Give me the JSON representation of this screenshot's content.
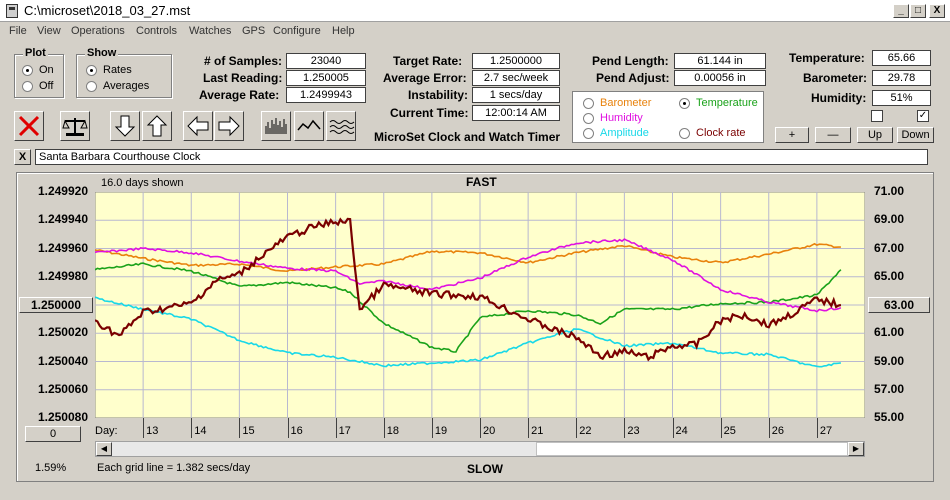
{
  "window": {
    "title": "C:\\microset\\2018_03_27.mst",
    "min": "_",
    "max": "□",
    "close": "X"
  },
  "menu": [
    "File",
    "View",
    "Operations",
    "Controls",
    "Watches",
    "GPS",
    "Configure",
    "Help"
  ],
  "plot_group": {
    "title": "Plot",
    "options": [
      "On",
      "Off"
    ],
    "selected": "On"
  },
  "show_group": {
    "title": "Show",
    "options": [
      "Rates",
      "Averages"
    ],
    "selected": "Rates"
  },
  "readings": {
    "samples_label": "# of Samples:",
    "samples": "23040",
    "last_label": "Last Reading:",
    "last": "1.250005",
    "avg_label": "Average Rate:",
    "avg": "1.2499943",
    "target_label": "Target Rate:",
    "target": "1.2500000",
    "avgerr_label": "Average Error:",
    "avgerr": "2.7 sec/week",
    "instab_label": "Instability:",
    "instab": "1 secs/day",
    "time_label": "Current Time:",
    "time": "12:00:14 AM",
    "pendlen_label": "Pend Length:",
    "pendlen": "61.144 in",
    "pendadj_label": "Pend Adjust:",
    "pendadj": "0.00056 in",
    "temp_label": "Temperature:",
    "temp": "65.66",
    "baro_label": "Barometer:",
    "baro": "29.78",
    "hum_label": "Humidity:",
    "hum": "51%"
  },
  "app_caption": "MicroSet Clock and Watch Timer",
  "series_select": {
    "options": [
      {
        "label": "Barometer",
        "color": "#e8820c"
      },
      {
        "label": "Temperature",
        "color": "#1aa21a"
      },
      {
        "label": "Humidity",
        "color": "#e010e0"
      },
      {
        "label": "Amplitude",
        "color": "#18d8e8"
      },
      {
        "label": "Clock rate",
        "color": "#7a0000"
      }
    ],
    "selected": "Temperature"
  },
  "aux_buttons": {
    "plus": "+",
    "minus": "—",
    "up": "Up",
    "down": "Down"
  },
  "checkboxes": [
    false,
    true
  ],
  "clock_name": "Santa Barbara Courthouse Clock",
  "clock_close": "X",
  "chart": {
    "top_label": "FAST",
    "bottom_label": "SLOW",
    "days_shown": "16.0 days shown",
    "grid_note": "Each grid line = 1.382 secs/day",
    "left_percent": "1.59%",
    "left_button": "1.250000",
    "right_button": "63.00",
    "zero_button": "0",
    "day_label": "Day:"
  },
  "chart_data": {
    "type": "line",
    "x_label": "Day:",
    "x_ticks": [
      13,
      14,
      15,
      16,
      17,
      18,
      19,
      20,
      21,
      22,
      23,
      24,
      25,
      26,
      27
    ],
    "y_left_ticks": [
      "1.249920",
      "1.249940",
      "1.249960",
      "1.249980",
      "1.250000",
      "1.250020",
      "1.250040",
      "1.250060",
      "1.250080"
    ],
    "y_right_ticks": [
      "71.00",
      "69.00",
      "67.00",
      "65.00",
      "63.00",
      "61.00",
      "59.00",
      "57.00",
      "55.00"
    ],
    "y_left_range": [
      1.24992,
      1.25008
    ],
    "y_right_range": [
      71,
      55
    ],
    "x_range": [
      12.0,
      28.0
    ],
    "series": [
      {
        "name": "Barometer",
        "color": "#e8820c",
        "x": [
          12.0,
          13,
          14,
          15,
          16,
          17,
          18,
          19,
          20,
          21,
          22,
          23,
          24,
          25,
          26,
          27,
          27.5
        ],
        "y": [
          66.9,
          66.3,
          65.8,
          65.9,
          65.4,
          65.7,
          65.9,
          66.8,
          66.7,
          66.0,
          66.7,
          67.2,
          66.4,
          66.0,
          66.6,
          67.3,
          67.1
        ]
      },
      {
        "name": "Temperature",
        "color": "#1aa21a",
        "x": [
          12.0,
          13,
          14,
          15,
          16,
          17,
          17.3,
          18,
          19,
          19.5,
          20,
          21,
          22,
          22.5,
          23,
          24,
          25,
          26,
          27,
          27.5
        ],
        "y": [
          65.5,
          65.9,
          65.4,
          64.3,
          64.6,
          64.2,
          63.9,
          61.7,
          60.0,
          59.7,
          62.1,
          62.6,
          62.3,
          61.7,
          62.7,
          62.7,
          63.1,
          63.2,
          63.7,
          65.5
        ]
      },
      {
        "name": "Humidity",
        "color": "#e010e0",
        "x": [
          12.0,
          13,
          14,
          15,
          16,
          17,
          17.5,
          18,
          19,
          20,
          21,
          22,
          23,
          24,
          25,
          26,
          27,
          27.5
        ],
        "y": [
          66.7,
          67.0,
          66.7,
          66.1,
          65.6,
          65.4,
          64.5,
          64.7,
          64.1,
          64.9,
          66.4,
          67.4,
          67.6,
          66.2,
          64.1,
          63.2,
          62.6,
          62.8
        ]
      },
      {
        "name": "Amplitude",
        "color": "#18d8e8",
        "x": [
          12.0,
          13,
          14,
          15,
          16,
          17,
          18,
          19,
          20,
          21,
          22,
          23,
          24,
          25,
          26,
          27,
          27.5
        ],
        "y": [
          63.5,
          62.7,
          62.0,
          60.5,
          59.6,
          59.3,
          58.7,
          58.9,
          59.1,
          60.3,
          61.3,
          60.1,
          60.3,
          59.6,
          59.5,
          58.6,
          58.9
        ]
      },
      {
        "name": "Clock rate",
        "color": "#7a0000",
        "x": [
          12.0,
          12.5,
          13,
          14,
          14.5,
          15,
          15.5,
          16,
          16.5,
          17,
          17.3,
          17.5,
          18,
          19,
          20,
          21,
          21.5,
          22,
          22.5,
          23,
          23.5,
          24,
          24.5,
          25,
          25.5,
          26,
          26.5,
          27,
          27.5
        ],
        "y": [
          1.250011,
          1.250022,
          1.250005,
          1.249999,
          1.249983,
          1.249978,
          1.249964,
          1.249952,
          1.249945,
          1.249941,
          1.249941,
          1.250003,
          1.249986,
          1.249992,
          1.249994,
          1.25001,
          1.250017,
          1.250023,
          1.250036,
          1.250033,
          1.250037,
          1.250029,
          1.250028,
          1.250011,
          1.250007,
          1.250014,
          1.250006,
          1.249996,
          1.25
        ]
      }
    ]
  }
}
